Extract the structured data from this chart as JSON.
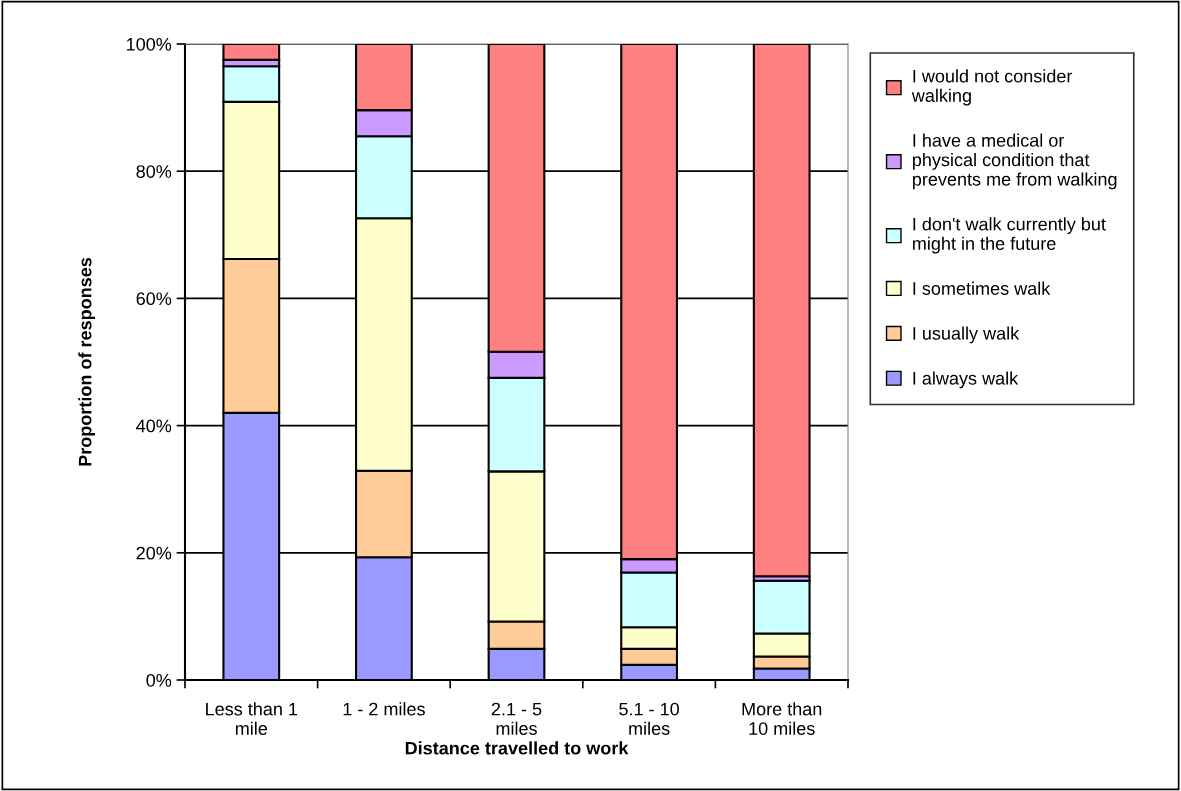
{
  "chart_data": {
    "type": "bar",
    "stacked": true,
    "xlabel": "Distance travelled to work",
    "ylabel": "Proportion of responses",
    "categories": [
      "Less than 1 mile",
      "1 - 2 miles",
      "2.1 - 5 miles",
      "5.1 - 10 miles",
      "More than 10 miles"
    ],
    "series": [
      {
        "name": "I always walk",
        "color": "#9999ff",
        "values": [
          42.0,
          19.3,
          4.9,
          2.4,
          1.8
        ]
      },
      {
        "name": "I usually walk",
        "color": "#ffcc99",
        "values": [
          24.2,
          13.6,
          4.3,
          2.5,
          1.9
        ]
      },
      {
        "name": "I sometimes walk",
        "color": "#ffffcc",
        "values": [
          24.7,
          39.7,
          23.6,
          3.4,
          3.6
        ]
      },
      {
        "name": "I don't walk currently but might in the future",
        "color": "#ccffff",
        "values": [
          5.6,
          12.9,
          14.7,
          8.6,
          8.3
        ]
      },
      {
        "name": "I have a medical or physical condition that prevents me from walking",
        "color": "#cc99ff",
        "values": [
          1.0,
          4.1,
          4.1,
          2.1,
          0.7
        ]
      },
      {
        "name": "I would not consider walking",
        "color": "#ff8080",
        "values": [
          2.5,
          10.4,
          48.4,
          81.0,
          83.7
        ]
      }
    ],
    "ylim": [
      0,
      100
    ],
    "yticks": [
      {
        "value": 0,
        "label": "0%"
      },
      {
        "value": 20,
        "label": "20%"
      },
      {
        "value": 40,
        "label": "40%"
      },
      {
        "value": 60,
        "label": "60%"
      },
      {
        "value": 80,
        "label": "80%"
      },
      {
        "value": 100,
        "label": "100%"
      }
    ],
    "grid": "y",
    "legend": "right"
  }
}
